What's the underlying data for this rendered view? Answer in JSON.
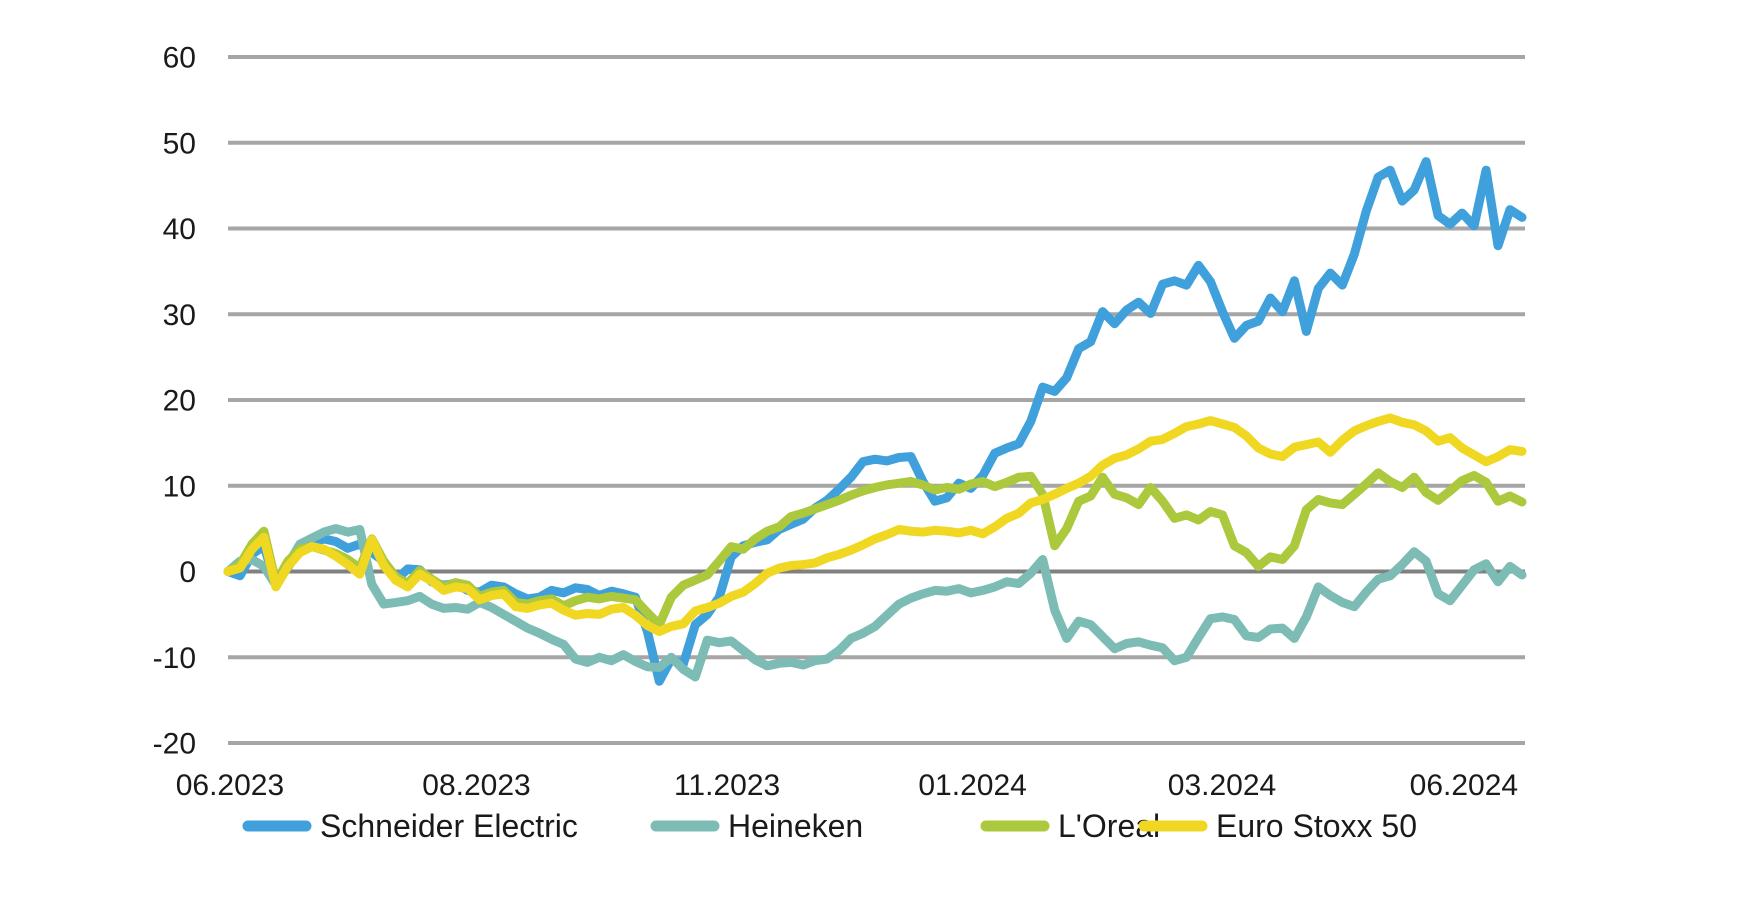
{
  "chart_data": {
    "type": "line",
    "ylim": [
      -20,
      60
    ],
    "grid": true,
    "legend_position": "bottom",
    "grid_color": "#a6a6a6",
    "zero_line_color": "#808080",
    "text_color": "#1a1a1a",
    "y_tick_labels": [
      60,
      50,
      40,
      30,
      20,
      10,
      0,
      -10,
      -20
    ],
    "x_tick_labels": [
      "06.2023",
      "08.2023",
      "11.2023",
      "01.2024",
      "03.2024",
      "06.2024"
    ],
    "series": [
      {
        "name": "Schneider Electric",
        "color": "#3FA0DC",
        "values": [
          0,
          -0.5,
          2.0,
          3.0,
          -1.5,
          0.5,
          2.5,
          3.3,
          3.8,
          3.5,
          2.7,
          3.2,
          2.2,
          1.2,
          -1.0,
          0.3,
          0.2,
          -1.2,
          -1.6,
          -1.4,
          -2.2,
          -2.4,
          -1.6,
          -1.8,
          -2.6,
          -3.2,
          -3.0,
          -2.2,
          -2.5,
          -1.9,
          -2.1,
          -2.8,
          -2.3,
          -2.6,
          -3.0,
          -7.0,
          -12.8,
          -10.2,
          -10.8,
          -6.2,
          -5.0,
          -3.0,
          1.7,
          3.0,
          3.4,
          3.7,
          4.9,
          5.5,
          6.1,
          7.4,
          8.3,
          9.6,
          11.0,
          12.8,
          13.1,
          12.9,
          13.3,
          13.4,
          10.5,
          8.2,
          8.6,
          10.3,
          9.7,
          11.2,
          13.8,
          14.4,
          14.9,
          17.5,
          21.5,
          21.0,
          22.6,
          26.0,
          26.8,
          30.3,
          28.9,
          30.5,
          31.4,
          30.1,
          33.5,
          33.9,
          33.4,
          35.7,
          33.8,
          30.3,
          27.2,
          28.7,
          29.2,
          31.9,
          30.3,
          33.9,
          28.0,
          33.0,
          34.8,
          33.4,
          37.0,
          42.0,
          46.0,
          46.8,
          43.2,
          44.5,
          47.8,
          41.5,
          40.5,
          41.8,
          40.3,
          46.8,
          38.0,
          42.2,
          41.3
        ]
      },
      {
        "name": "Heineken",
        "color": "#7CBCB4",
        "values": [
          0,
          1.2,
          1.4,
          0.6,
          -1.6,
          0.8,
          3.2,
          3.9,
          4.6,
          5.0,
          4.6,
          4.9,
          -1.5,
          -3.8,
          -3.6,
          -3.4,
          -2.9,
          -3.8,
          -4.3,
          -4.2,
          -4.4,
          -3.6,
          -4.2,
          -5.0,
          -5.8,
          -6.6,
          -7.2,
          -7.9,
          -8.5,
          -10.2,
          -10.6,
          -10.0,
          -10.4,
          -9.7,
          -10.5,
          -11.1,
          -11.2,
          -10.0,
          -11.4,
          -12.3,
          -8.0,
          -8.3,
          -8.1,
          -9.2,
          -10.3,
          -11.0,
          -10.7,
          -10.6,
          -10.9,
          -10.4,
          -10.2,
          -9.2,
          -7.8,
          -7.2,
          -6.4,
          -5.1,
          -3.8,
          -3.1,
          -2.6,
          -2.2,
          -2.3,
          -2.0,
          -2.5,
          -2.2,
          -1.8,
          -1.2,
          -1.4,
          -0.2,
          1.4,
          -4.5,
          -7.8,
          -5.8,
          -6.2,
          -7.6,
          -9.0,
          -8.4,
          -8.2,
          -8.6,
          -8.9,
          -10.4,
          -10.0,
          -7.7,
          -5.5,
          -5.3,
          -5.6,
          -7.5,
          -7.7,
          -6.7,
          -6.6,
          -7.8,
          -5.3,
          -1.8,
          -2.8,
          -3.6,
          -4.1,
          -2.4,
          -0.9,
          -0.5,
          0.8,
          2.3,
          1.2,
          -2.6,
          -3.4,
          -1.6,
          0.2,
          0.9,
          -1.2,
          0.6,
          -0.4
        ]
      },
      {
        "name": "L'Oreal",
        "color": "#ACC83C",
        "values": [
          0,
          0.8,
          3.2,
          4.7,
          -1.3,
          1.2,
          2.6,
          2.9,
          2.5,
          2.1,
          1.4,
          0.4,
          3.8,
          1.2,
          -0.6,
          -1.4,
          0.1,
          -0.9,
          -1.8,
          -1.3,
          -1.6,
          -2.9,
          -2.4,
          -2.2,
          -3.6,
          -3.8,
          -3.4,
          -3.2,
          -4.0,
          -3.4,
          -3.0,
          -3.2,
          -2.9,
          -3.1,
          -3.3,
          -4.8,
          -6.2,
          -3.0,
          -1.6,
          -1.0,
          -0.4,
          1.2,
          2.9,
          2.6,
          3.8,
          4.7,
          5.2,
          6.4,
          6.8,
          7.3,
          7.8,
          8.3,
          8.9,
          9.4,
          9.8,
          10.1,
          10.3,
          10.5,
          10.1,
          9.5,
          9.8,
          9.6,
          10.2,
          10.5,
          9.9,
          10.4,
          11.0,
          11.1,
          9.0,
          3.0,
          5.0,
          8.2,
          8.8,
          11.0,
          9.0,
          8.6,
          7.8,
          9.8,
          8.2,
          6.2,
          6.6,
          6.0,
          7.0,
          6.6,
          3.0,
          2.2,
          0.6,
          1.7,
          1.4,
          3.0,
          7.2,
          8.4,
          8.0,
          7.8,
          9.0,
          10.2,
          11.5,
          10.5,
          9.8,
          11.0,
          9.2,
          8.3,
          9.4,
          10.6,
          11.2,
          10.4,
          8.2,
          8.8,
          8.1
        ]
      },
      {
        "name": "Euro Stoxx 50",
        "color": "#F0D722",
        "values": [
          0,
          0.4,
          2.6,
          4.0,
          -1.8,
          0.6,
          2.2,
          2.9,
          2.6,
          1.8,
          0.8,
          -0.3,
          3.7,
          0.7,
          -1.0,
          -1.8,
          -0.3,
          -1.1,
          -2.2,
          -1.8,
          -2.0,
          -3.3,
          -2.8,
          -2.6,
          -4.1,
          -4.3,
          -3.9,
          -3.7,
          -4.5,
          -5.1,
          -4.9,
          -5.0,
          -4.4,
          -4.2,
          -5.1,
          -6.3,
          -7.0,
          -6.4,
          -6.1,
          -4.6,
          -4.2,
          -3.7,
          -2.9,
          -2.4,
          -1.4,
          -0.2,
          0.4,
          0.7,
          0.8,
          1.0,
          1.6,
          2.0,
          2.5,
          3.1,
          3.8,
          4.3,
          4.9,
          4.7,
          4.6,
          4.8,
          4.7,
          4.5,
          4.8,
          4.4,
          5.2,
          6.2,
          6.8,
          8.0,
          8.4,
          9.0,
          9.7,
          10.3,
          11.1,
          12.4,
          13.2,
          13.6,
          14.3,
          15.2,
          15.4,
          16.1,
          16.9,
          17.2,
          17.6,
          17.2,
          16.8,
          15.8,
          14.4,
          13.7,
          13.4,
          14.5,
          14.8,
          15.1,
          13.9,
          15.3,
          16.4,
          17.0,
          17.5,
          17.9,
          17.4,
          17.1,
          16.4,
          15.2,
          15.6,
          14.4,
          13.6,
          12.8,
          13.4,
          14.2,
          14.0
        ]
      }
    ]
  }
}
